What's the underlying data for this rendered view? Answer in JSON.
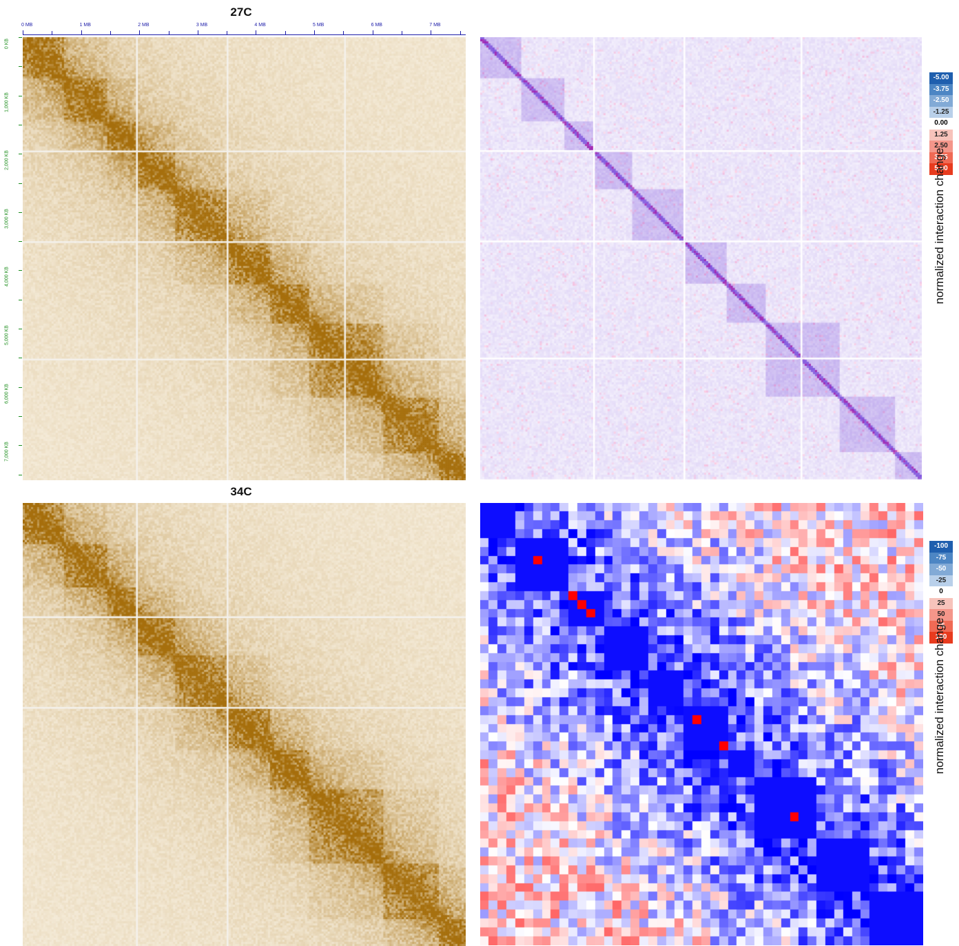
{
  "panels": {
    "top_title": "27C",
    "bottom_title": "34C"
  },
  "axes": {
    "x_ticks": [
      "0 MB",
      "1 MB",
      "2 MB",
      "3 MB",
      "4 MB",
      "5 MB",
      "6 MB",
      "7 MB"
    ],
    "y_ticks": [
      "0 KB",
      "1,000 KB",
      "2,000 KB",
      "3,000 KB",
      "4,000 KB",
      "5,000 KB",
      "6,000 KB",
      "7,000 KB"
    ]
  },
  "legend_top": {
    "label": "normalized interaction change",
    "entries": [
      "-5.00",
      "-3.75",
      "-2.50",
      "-1.25",
      "0.00",
      "1.25",
      "2.50",
      "3.75",
      "5.00"
    ],
    "colors": [
      "#1f5fae",
      "#4d86c4",
      "#82aad6",
      "#b9d0ea",
      "#ffffff",
      "#f7c3bb",
      "#f4968a",
      "#f06a55",
      "#e83b1e"
    ]
  },
  "legend_bottom": {
    "label": "normalized interaction change",
    "entries": [
      "-100",
      "-75",
      "-50",
      "-25",
      "0",
      "25",
      "50",
      "75",
      "100"
    ],
    "colors": [
      "#1f5fae",
      "#4d86c4",
      "#82aad6",
      "#b9d0ea",
      "#ffffff",
      "#f7c3bb",
      "#f4968a",
      "#f06a55",
      "#e83b1e"
    ]
  },
  "chart_data": [
    {
      "type": "heatmap",
      "title": "27C",
      "x_ticks": [
        "0 MB",
        "1 MB",
        "2 MB",
        "3 MB",
        "4 MB",
        "5 MB",
        "6 MB",
        "7 MB"
      ],
      "y_ticks": [
        "0 KB",
        "1,000 KB",
        "2,000 KB",
        "3,000 KB",
        "4,000 KB",
        "5,000 KB",
        "6,000 KB",
        "7,000 KB"
      ],
      "x_range_mb": [
        0,
        7.6
      ],
      "color": "#a66f0d",
      "domain_boundaries_mb": [
        0,
        0.7,
        1.45,
        1.95,
        2.6,
        3.5,
        4.25,
        4.9,
        6.2,
        7.15,
        7.6
      ],
      "masked_rows_mb": [
        1.95,
        3.5,
        5.5
      ]
    },
    {
      "type": "heatmap",
      "title": "",
      "values_range": [
        -5,
        5
      ],
      "colormap": "blue-white-red"
    },
    {
      "type": "heatmap",
      "title": "34C",
      "color": "#a66f0d",
      "domain_boundaries_mb": [
        0,
        0.7,
        1.45,
        1.95,
        2.6,
        3.5,
        4.25,
        4.9,
        6.2,
        7.15,
        7.6
      ],
      "masked_rows_mb": [
        1.95,
        3.5
      ]
    },
    {
      "type": "heatmap",
      "title": "",
      "values_range": [
        -100,
        100
      ],
      "colormap": "blue-white-red",
      "grid_size": 50
    }
  ]
}
